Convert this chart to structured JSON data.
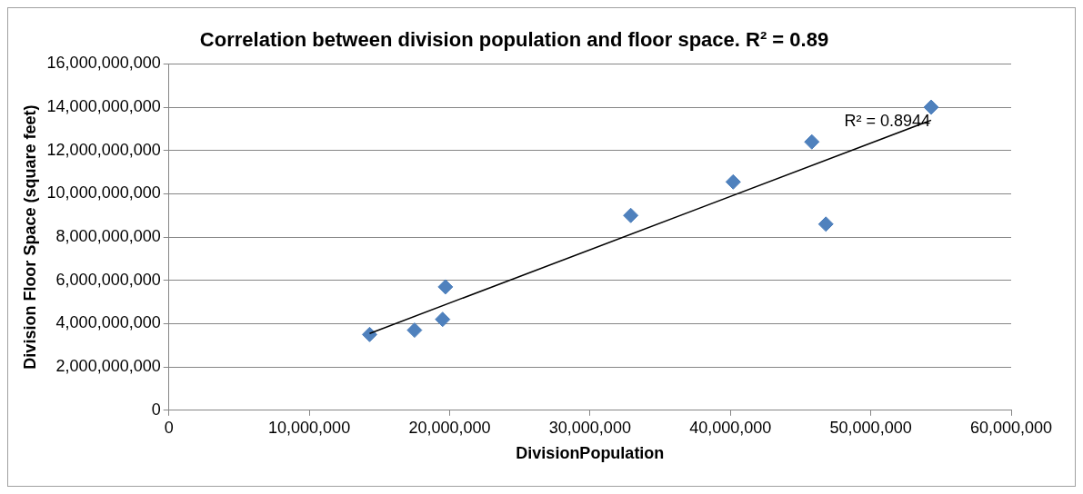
{
  "chart_data": {
    "type": "scatter",
    "title": "Correlation between division population and floor space. R² = 0.89",
    "xlabel": "DivisionPopulation",
    "ylabel": "Division Floor Space (square feet)",
    "x": [
      14300000,
      17500000,
      19500000,
      19700000,
      32900000,
      40200000,
      45800000,
      46800000,
      54300000
    ],
    "series": [
      {
        "type": "scatter",
        "color": "#4f81bd",
        "marker": "diamond",
        "values": [
          3500000000,
          3700000000,
          4200000000,
          5700000000,
          9000000000,
          10550000000,
          12400000000,
          8600000000,
          14000000000
        ]
      },
      {
        "type": "line",
        "color": "#000000",
        "marker": "none",
        "line_style": "solid",
        "x": [
          14300000,
          54300000
        ],
        "values": [
          3550000000,
          13400000000
        ]
      }
    ],
    "annotations": [
      "R² = 0.8944"
    ],
    "xlim": [
      0,
      60000000
    ],
    "xticks": [
      0,
      {
        "value": 10000000,
        "label": "10,000,000"
      },
      {
        "value": 20000000,
        "label": "20,000,000"
      },
      {
        "value": 30000000,
        "label": "30,000,000"
      },
      {
        "value": 40000000,
        "label": "40,000,000"
      },
      {
        "value": 50000000,
        "label": "50,000,000"
      },
      {
        "value": 60000000,
        "label": "60,000,000"
      }
    ],
    "ylim": [
      0,
      16000000000
    ],
    "yticks": [
      0,
      {
        "value": 2000000000,
        "label": "2,000,000,000"
      },
      {
        "value": 4000000000,
        "label": "4,000,000,000"
      },
      {
        "value": 6000000000,
        "label": "6,000,000,000"
      },
      {
        "value": 8000000000,
        "label": "8,000,000,000"
      },
      {
        "value": 10000000000,
        "label": "10,000,000,000"
      },
      {
        "value": 12000000000,
        "label": "12,000,000,000"
      },
      {
        "value": 14000000000,
        "label": "14,000,000,000"
      },
      {
        "value": 16000000000,
        "label": "16,000,000,000"
      }
    ],
    "grid": "y",
    "legend": false
  }
}
